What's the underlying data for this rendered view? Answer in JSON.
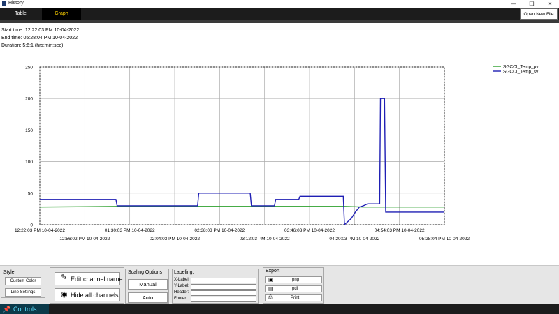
{
  "window": {
    "title": "History"
  },
  "tabs": {
    "table": "Table",
    "graph": "Graph"
  },
  "toolbar": {
    "open_new_file": "Open New File"
  },
  "info": {
    "start_time": "Start time: 12:22:03 PM 10-04-2022",
    "end_time": "End time: 05:28:04 PM 10-04-2022",
    "duration": "Duration: 5:6:1 (hrs:min:sec)"
  },
  "chart_data": {
    "type": "line",
    "ylim": [
      0,
      250
    ],
    "yticks": [
      "250",
      "200",
      "150",
      "100",
      "50",
      "0"
    ],
    "xticks_upper": [
      "12:22:03 PM 10-04-2022",
      "01:30:03 PM 10-04-2022",
      "02:38:03 PM 10-04-2022",
      "03:46:03 PM 10-04-2022",
      "04:54:03 PM 10-04-2022"
    ],
    "xticks_lower": [
      "12:56:02 PM 10-04-2022",
      "02:04:03 PM 10-04-2022",
      "03:12:03 PM 10-04-2022",
      "04:20:03 PM 10-04-2022",
      "05:28:04 PM 10-04-2022"
    ],
    "grid": true,
    "legend_position": "top-right",
    "series": [
      {
        "name": "SGCCI_Temp_pv",
        "color": "#2ca02c",
        "points": [
          [
            0,
            28
          ],
          [
            0.2,
            29
          ],
          [
            0.4,
            29
          ],
          [
            0.6,
            29
          ],
          [
            0.75,
            29
          ],
          [
            0.8,
            28
          ],
          [
            0.9,
            28
          ],
          [
            1,
            28
          ]
        ]
      },
      {
        "name": "SGCCI_Temp_sv",
        "color": "#1f1fb4",
        "points": [
          [
            0,
            40
          ],
          [
            0.188,
            40
          ],
          [
            0.191,
            30
          ],
          [
            0.39,
            30
          ],
          [
            0.393,
            50
          ],
          [
            0.52,
            50
          ],
          [
            0.523,
            30
          ],
          [
            0.58,
            30
          ],
          [
            0.583,
            40
          ],
          [
            0.64,
            40
          ],
          [
            0.643,
            45
          ],
          [
            0.75,
            45
          ],
          [
            0.753,
            0
          ],
          [
            0.77,
            10
          ],
          [
            0.78,
            20
          ],
          [
            0.79,
            28
          ],
          [
            0.8,
            30
          ],
          [
            0.81,
            33
          ],
          [
            0.83,
            33
          ],
          [
            0.84,
            33
          ],
          [
            0.842,
            200
          ],
          [
            0.852,
            200
          ],
          [
            0.855,
            20
          ],
          [
            1,
            20
          ]
        ]
      }
    ]
  },
  "panel": {
    "style": {
      "title": "Style",
      "custom_color": "Custom Color",
      "line_settings": "Line Settings"
    },
    "channels": {
      "edit": "Edit channel name",
      "hide": "Hide all channels"
    },
    "scaling": {
      "title": "Scaling Options",
      "manual": "Manual",
      "auto": "Auto"
    },
    "labeling": {
      "title": "Labeling:",
      "xlabel": "X-Label:",
      "ylabel": "Y-Label:",
      "header": "Header:",
      "footer": "Footer:"
    },
    "export": {
      "title": "Export",
      "png": "png",
      "pdf": "pdf",
      "print": "Print"
    }
  },
  "statusbar": {
    "controls": "Controls"
  }
}
